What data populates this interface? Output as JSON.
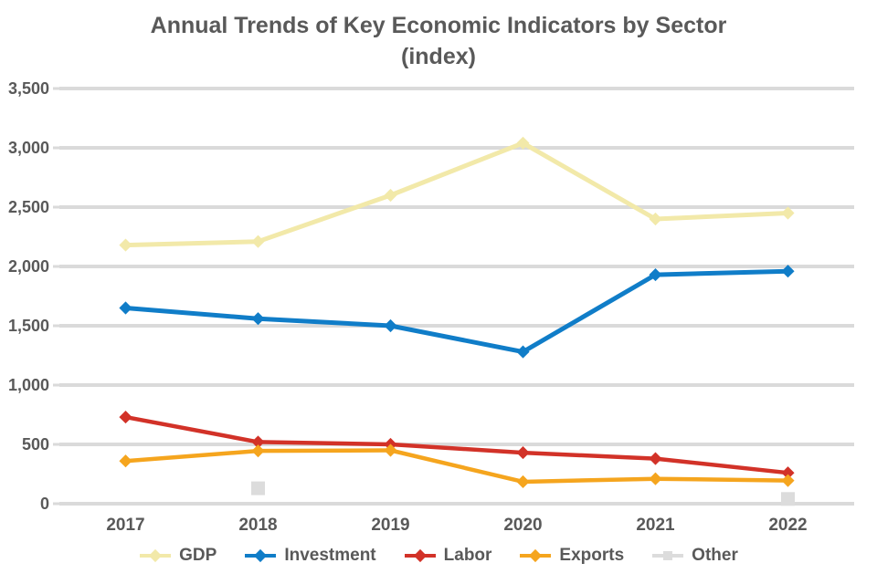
{
  "title": {
    "line1": "Annual Trends of Key Economic Indicators by Sector",
    "line2": "(index)"
  },
  "colors": {
    "text": "#595959",
    "grid": "#DADADA",
    "background": "#FFFFFF",
    "series_cream": "#F2E9A9",
    "series_blue": "#107DC8",
    "series_red": "#D23228",
    "series_orange": "#F5A51E",
    "series_gray": "#DCDCDC"
  },
  "chart_data": {
    "type": "line",
    "title": "Annual Trends of Key Economic Indicators by Sector (index)",
    "categories": [
      "2017",
      "2018",
      "2019",
      "2020",
      "2021",
      "2022"
    ],
    "series": [
      {
        "name": "GDP",
        "color": "#F2E9A9",
        "marker": "diamond",
        "line_width": 5,
        "values": [
          2180,
          2210,
          2600,
          3040,
          2400,
          2450
        ]
      },
      {
        "name": "Investment",
        "color": "#107DC8",
        "marker": "diamond",
        "line_width": 5,
        "values": [
          1650,
          1560,
          1500,
          1280,
          1930,
          1960
        ]
      },
      {
        "name": "Labor",
        "color": "#D23228",
        "marker": "diamond",
        "line_width": 4.5,
        "values": [
          730,
          520,
          500,
          430,
          380,
          260
        ]
      },
      {
        "name": "Exports",
        "color": "#F5A51E",
        "marker": "diamond",
        "line_width": 4.5,
        "values": [
          360,
          445,
          450,
          185,
          210,
          195
        ]
      },
      {
        "name": "Other",
        "color": "#DCDCDC",
        "marker": "square",
        "line_width": 4,
        "values": [
          null,
          130,
          null,
          null,
          null,
          40
        ]
      }
    ],
    "xlabel": "",
    "ylabel": "",
    "ylim": [
      0,
      3500
    ],
    "yticks": [
      0,
      500,
      1000,
      1500,
      2000,
      2500,
      3000,
      3500
    ],
    "ytick_labels": [
      "0",
      "500",
      "1,000",
      "1,500",
      "2,000",
      "2,500",
      "3,000",
      "3,500"
    ],
    "grid": true,
    "legend_position": "bottom"
  }
}
